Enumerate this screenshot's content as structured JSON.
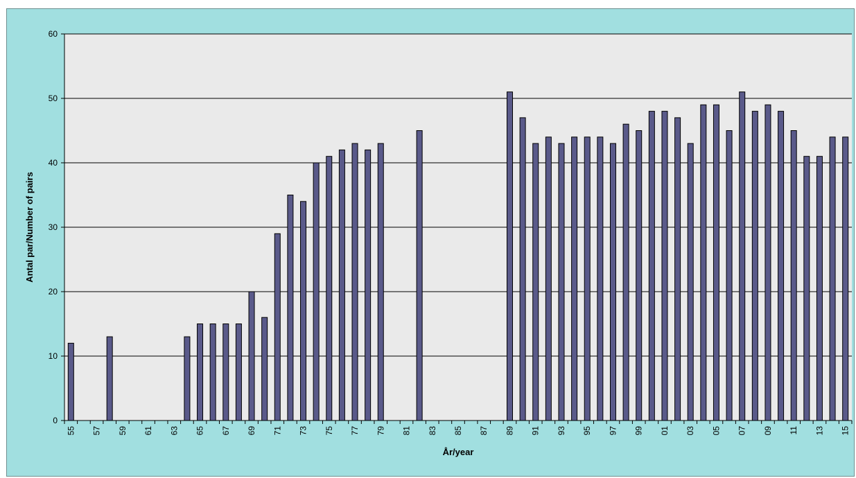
{
  "chart_data": {
    "type": "bar",
    "title": "",
    "xlabel": "År/year",
    "ylabel": "Antal par/Number of pairs",
    "ylim": [
      0,
      60
    ],
    "yticks": [
      0,
      10,
      20,
      30,
      40,
      50,
      60
    ],
    "grid": true,
    "legend": "none",
    "colors": {
      "bar": "#5a5a8a",
      "plot_bg": "#eaeaea",
      "frame_bg": "#a1dfe0"
    },
    "categories": [
      "55",
      "56",
      "57",
      "58",
      "59",
      "60",
      "61",
      "62",
      "63",
      "64",
      "65",
      "66",
      "67",
      "68",
      "69",
      "70",
      "71",
      "72",
      "73",
      "74",
      "75",
      "76",
      "77",
      "78",
      "79",
      "80",
      "81",
      "82",
      "83",
      "84",
      "85",
      "86",
      "87",
      "88",
      "89",
      "90",
      "91",
      "92",
      "93",
      "94",
      "95",
      "96",
      "97",
      "98",
      "99",
      "00",
      "01",
      "02",
      "03",
      "04",
      "05",
      "06",
      "07",
      "08",
      "09",
      "10",
      "11",
      "12",
      "13",
      "14",
      "15"
    ],
    "x_tick_labels": [
      "55",
      "57",
      "59",
      "61",
      "63",
      "65",
      "67",
      "69",
      "71",
      "73",
      "75",
      "77",
      "79",
      "81",
      "83",
      "85",
      "87",
      "89",
      "91",
      "93",
      "95",
      "97",
      "99",
      "01",
      "03",
      "05",
      "07",
      "09",
      "11",
      "13",
      "15"
    ],
    "values": [
      12,
      null,
      null,
      13,
      null,
      null,
      null,
      null,
      null,
      13,
      15,
      15,
      15,
      15,
      20,
      16,
      29,
      35,
      34,
      40,
      41,
      42,
      43,
      42,
      43,
      null,
      null,
      45,
      null,
      null,
      null,
      null,
      null,
      null,
      51,
      47,
      43,
      44,
      43,
      44,
      44,
      44,
      43,
      46,
      45,
      48,
      48,
      47,
      43,
      49,
      49,
      45,
      51,
      48,
      49,
      48,
      45,
      41,
      41,
      44,
      44
    ]
  }
}
